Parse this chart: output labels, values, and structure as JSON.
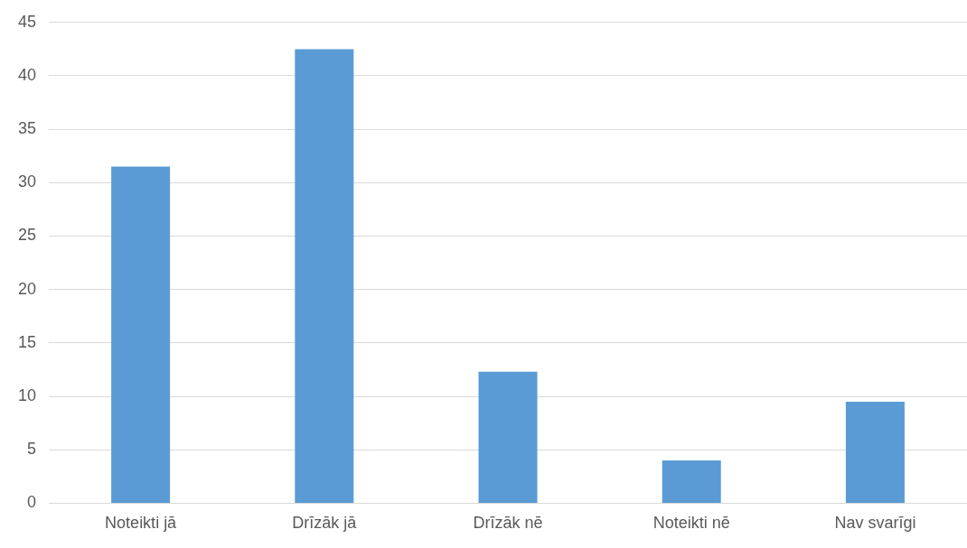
{
  "chart_data": {
    "type": "bar",
    "categories": [
      "Noteikti jā",
      "Drīzāk jā",
      "Drīzāk nē",
      "Noteikti nē",
      "Nav svarīgi"
    ],
    "values": [
      31.5,
      42.5,
      12.3,
      4,
      9.5
    ],
    "color": "#5b9bd5",
    "ylim": [
      0,
      45
    ],
    "yticks": [
      0,
      5,
      10,
      15,
      20,
      25,
      30,
      35,
      40,
      45
    ],
    "grid": "y",
    "legend": false
  }
}
